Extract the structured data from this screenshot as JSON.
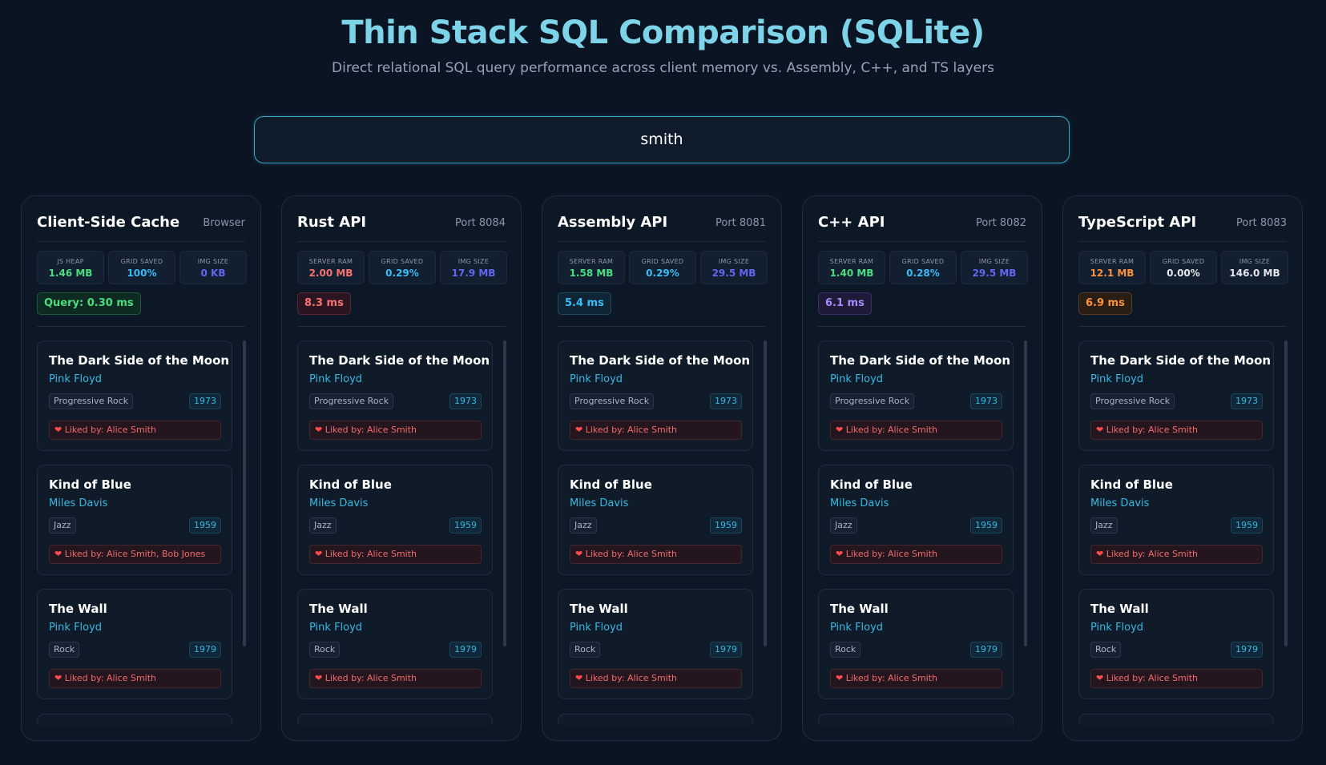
{
  "page": {
    "title": "Thin Stack SQL Comparison (SQLite)",
    "subtitle": "Direct relational SQL query performance across client memory vs. Assembly, C++, and TS layers"
  },
  "search": {
    "value": "smith"
  },
  "colors": {
    "green": "#4ade80",
    "cyan": "#38bdf8",
    "blue": "#6366f1",
    "red": "#f87171",
    "purple": "#a78bfa",
    "orange": "#fb923c",
    "white": "#e5e7eb"
  },
  "panels": [
    {
      "name": "Client-Side Cache",
      "tag": "Browser",
      "stats": [
        {
          "label": "JS HEAP",
          "value": "1.46 MB",
          "color": "#4ade80"
        },
        {
          "label": "GRID SAVED",
          "value": "100%",
          "color": "#38bdf8"
        },
        {
          "label": "IMG SIZE",
          "value": "0 KB",
          "color": "#6366f1"
        }
      ],
      "badge": {
        "text": "Query: 0.30 ms",
        "color": "#4ade80",
        "bg": "#0f2a22",
        "border": "#1e5a40"
      },
      "cards": [
        {
          "title": "The Dark Side of the Moon",
          "artist": "Pink Floyd",
          "genre": "Progressive Rock",
          "year": "1973",
          "liked": "Liked by: Alice Smith"
        },
        {
          "title": "Kind of Blue",
          "artist": "Miles Davis",
          "genre": "Jazz",
          "year": "1959",
          "liked": "Liked by: Alice Smith, Bob Jones"
        },
        {
          "title": "The Wall",
          "artist": "Pink Floyd",
          "genre": "Rock",
          "year": "1979",
          "liked": "Liked by: Alice Smith"
        }
      ]
    },
    {
      "name": "Rust API",
      "tag": "Port 8084",
      "stats": [
        {
          "label": "SERVER RAM",
          "value": "2.00 MB",
          "color": "#f87171"
        },
        {
          "label": "GRID SAVED",
          "value": "0.29%",
          "color": "#38bdf8"
        },
        {
          "label": "IMG SIZE",
          "value": "17.9 MB",
          "color": "#6366f1"
        }
      ],
      "badge": {
        "text": "8.3 ms",
        "color": "#f87171",
        "bg": "#2a1520",
        "border": "#5a2530"
      },
      "cards": [
        {
          "title": "The Dark Side of the Moon",
          "artist": "Pink Floyd",
          "genre": "Progressive Rock",
          "year": "1973",
          "liked": "Liked by: Alice Smith"
        },
        {
          "title": "Kind of Blue",
          "artist": "Miles Davis",
          "genre": "Jazz",
          "year": "1959",
          "liked": "Liked by: Alice Smith"
        },
        {
          "title": "The Wall",
          "artist": "Pink Floyd",
          "genre": "Rock",
          "year": "1979",
          "liked": "Liked by: Alice Smith"
        }
      ]
    },
    {
      "name": "Assembly API",
      "tag": "Port 8081",
      "stats": [
        {
          "label": "SERVER RAM",
          "value": "1.58 MB",
          "color": "#4ade80"
        },
        {
          "label": "GRID SAVED",
          "value": "0.29%",
          "color": "#38bdf8"
        },
        {
          "label": "IMG SIZE",
          "value": "29.5 MB",
          "color": "#6366f1"
        }
      ],
      "badge": {
        "text": "5.4 ms",
        "color": "#38bdf8",
        "bg": "#0f2535",
        "border": "#1e4a60"
      },
      "cards": [
        {
          "title": "The Dark Side of the Moon",
          "artist": "Pink Floyd",
          "genre": "Progressive Rock",
          "year": "1973",
          "liked": "Liked by: Alice Smith"
        },
        {
          "title": "Kind of Blue",
          "artist": "Miles Davis",
          "genre": "Jazz",
          "year": "1959",
          "liked": "Liked by: Alice Smith"
        },
        {
          "title": "The Wall",
          "artist": "Pink Floyd",
          "genre": "Rock",
          "year": "1979",
          "liked": "Liked by: Alice Smith"
        }
      ]
    },
    {
      "name": "C++ API",
      "tag": "Port 8082",
      "stats": [
        {
          "label": "SERVER RAM",
          "value": "1.40 MB",
          "color": "#4ade80"
        },
        {
          "label": "GRID SAVED",
          "value": "0.28%",
          "color": "#38bdf8"
        },
        {
          "label": "IMG SIZE",
          "value": "29.5 MB",
          "color": "#6366f1"
        }
      ],
      "badge": {
        "text": "6.1 ms",
        "color": "#a78bfa",
        "bg": "#1e1a38",
        "border": "#3b2f6a"
      },
      "cards": [
        {
          "title": "The Dark Side of the Moon",
          "artist": "Pink Floyd",
          "genre": "Progressive Rock",
          "year": "1973",
          "liked": "Liked by: Alice Smith"
        },
        {
          "title": "Kind of Blue",
          "artist": "Miles Davis",
          "genre": "Jazz",
          "year": "1959",
          "liked": "Liked by: Alice Smith"
        },
        {
          "title": "The Wall",
          "artist": "Pink Floyd",
          "genre": "Rock",
          "year": "1979",
          "liked": "Liked by: Alice Smith"
        }
      ]
    },
    {
      "name": "TypeScript API",
      "tag": "Port 8083",
      "stats": [
        {
          "label": "SERVER RAM",
          "value": "12.1 MB",
          "color": "#fb923c"
        },
        {
          "label": "GRID SAVED",
          "value": "0.00%",
          "color": "#e5e7eb"
        },
        {
          "label": "IMG SIZE",
          "value": "146.0 MB",
          "color": "#e5e7eb"
        }
      ],
      "badge": {
        "text": "6.9 ms",
        "color": "#fb923c",
        "bg": "#2a1d14",
        "border": "#5a3a20"
      },
      "cards": [
        {
          "title": "The Dark Side of the Moon",
          "artist": "Pink Floyd",
          "genre": "Progressive Rock",
          "year": "1973",
          "liked": "Liked by: Alice Smith"
        },
        {
          "title": "Kind of Blue",
          "artist": "Miles Davis",
          "genre": "Jazz",
          "year": "1959",
          "liked": "Liked by: Alice Smith"
        },
        {
          "title": "The Wall",
          "artist": "Pink Floyd",
          "genre": "Rock",
          "year": "1979",
          "liked": "Liked by: Alice Smith"
        }
      ]
    }
  ]
}
